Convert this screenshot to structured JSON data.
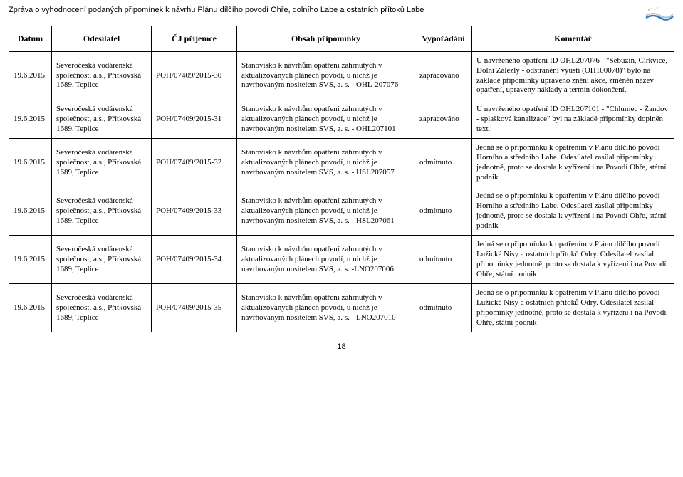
{
  "docTitle": "Zpráva o vyhodnocení podaných připomínek k návrhu Plánu dílčího povodí Ohře, dolního Labe a ostatních přítoků Labe",
  "pageNumber": "18",
  "headers": {
    "datum": "Datum",
    "odesilatel": "Odesílatel",
    "cj": "ČJ příjemce",
    "obsah": "Obsah připomínky",
    "vypo": "Vypořádání",
    "komentar": "Komentář"
  },
  "rows": [
    {
      "datum": "19.6.2015",
      "odesilatel": "Severočeská vodárenská společnost, a.s., Přítkovská 1689, Teplice",
      "cj": "POH/07409/2015-30",
      "obsah": "Stanovisko k návrhům opatření zahrnutých v aktualizovaných plánech povodí, u nichž je navrhovaným nositelem SVS, a. s. - OHL-207076",
      "vypo": "zapracováno",
      "komentar": "U navrženého opatření ID OHL207076 - \"Sebuzín, Církvice, Dolní Zálezly - odstranění výustí (OH100078)\" bylo na základě připomínky upraveno znění akce, změněn název opatření, upraveny náklady a termín dokončení."
    },
    {
      "datum": "19.6.2015",
      "odesilatel": "Severočeská vodárenská společnost, a.s., Přítkovská 1689, Teplice",
      "cj": "POH/07409/2015-31",
      "obsah": "Stanovisko k návrhům opatření zahrnutých v aktualizovaných plánech povodí, u nichž je navrhovaným nositelem SVS, a. s. - OHL207101",
      "vypo": "zapracováno",
      "komentar": "U navrženého opatření ID OHL207101 - \"Chlumec - Žandov - splašková kanalizace\" byl na základě připomínky doplněn text."
    },
    {
      "datum": "19.6.2015",
      "odesilatel": "Severočeská vodárenská společnost, a.s., Přítkovská 1689, Teplice",
      "cj": "POH/07409/2015-32",
      "obsah": "Stanovisko k návrhům opatření zahrnutých v aktualizovaných plánech povodí, u nichž je navrhovaným nositelem SVS, a. s. - HSL207057",
      "vypo": "odmítnuto",
      "komentar": "Jedná se o připomínku k opatřením v Plánu dílčího povodí Horního a středního Labe. Odesílatel zasílal připomínky jednotně, proto se dostala k vyřízení i na Povodí Ohře, státní podnik"
    },
    {
      "datum": "19.6.2015",
      "odesilatel": "Severočeská vodárenská společnost, a.s., Přítkovská 1689, Teplice",
      "cj": "POH/07409/2015-33",
      "obsah": "Stanovisko k návrhům opatření zahrnutých v aktualizovaných plánech povodí, u nichž je navrhovaným nositelem SVS, a. s. - HSL207061",
      "vypo": "odmítnuto",
      "komentar": "Jedná se o připomínku k opatřením v Plánu dílčího povodí Horního a středního Labe. Odesílatel zasílal připomínky jednotně, proto se dostala k vyřízení i na Povodí Ohře, státní podnik"
    },
    {
      "datum": "19.6.2015",
      "odesilatel": "Severočeská vodárenská společnost, a.s., Přítkovská 1689, Teplice",
      "cj": "POH/07409/2015-34",
      "obsah": "Stanovisko k návrhům opatření zahrnutých v aktualizovaných plánech povodí, u nichž je navrhovaným nositelem SVS, a. s. -LNO207006",
      "vypo": "odmítnuto",
      "komentar": "Jedná se o připomínku k opatřením v Plánu dílčího povodí Lužické Nisy a ostatních přítoků Odry. Odesílatel zasílal připomínky jednotně, proto se dostala k vyřízení i na Povodí Ohře, státní podnik"
    },
    {
      "datum": "19.6.2015",
      "odesilatel": "Severočeská vodárenská společnost, a.s., Přítkovská 1689, Teplice",
      "cj": "POH/07409/2015-35",
      "obsah": "Stanovisko k návrhům opatření zahrnutých v aktualizovaných plánech povodí, u nichž je navrhovaným nositelem SVS, a. s. - LNO207010",
      "vypo": "odmítnuto",
      "komentar": "Jedná se o připomínku k opatřením v Plánu dílčího povodí Lužické Nisy a ostatních přítoků Odry. Odesílatel zasílal připomínky jednotně, proto se dostala k vyřízení i na Povodí Ohře, státní podnik"
    }
  ],
  "colors": {
    "text": "#000000",
    "background": "#ffffff",
    "border": "#000000",
    "logoBlue": "#3a7ab8",
    "logoLight": "#a8c8e0"
  }
}
